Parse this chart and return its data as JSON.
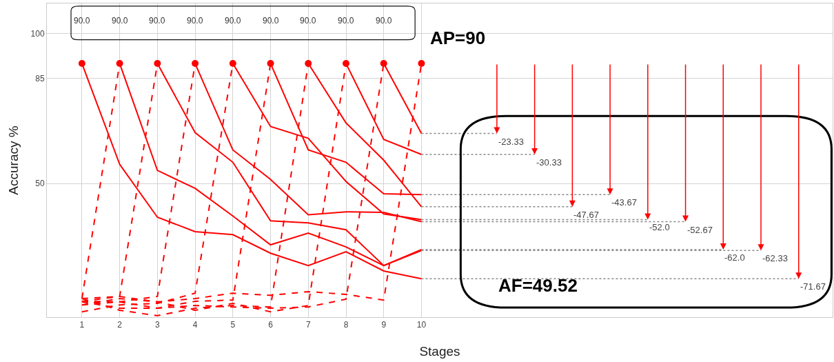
{
  "chart_data": {
    "type": "line",
    "xlabel": "Stages",
    "ylabel": "Accuracy %",
    "xlim": [
      0.07,
      20.9
    ],
    "ylim": [
      5.5,
      110
    ],
    "xticks": [
      1,
      2,
      3,
      4,
      5,
      6,
      7,
      8,
      9,
      10
    ],
    "yticks": [
      50,
      85,
      100
    ],
    "grid": true,
    "series": [
      {
        "type": "line",
        "line_style": "solid",
        "color": "#ff0000",
        "x": [
          1,
          2,
          3,
          4,
          5,
          6,
          7,
          8,
          9,
          10
        ],
        "values": [
          90,
          56.4,
          38.8,
          34.0,
          33.0,
          26.8,
          22.7,
          27.3,
          20.9,
          18.3
        ]
      },
      {
        "type": "line",
        "line_style": "dashed",
        "color": "#ff0000",
        "x": [
          1,
          2
        ],
        "values": [
          11.7,
          90
        ]
      },
      {
        "type": "line",
        "line_style": "solid",
        "color": "#ff0000",
        "x": [
          2,
          3,
          4,
          5,
          6,
          7,
          8,
          9,
          10
        ],
        "values": [
          90,
          54.4,
          48.4,
          39.2,
          29.6,
          33.5,
          28.9,
          22.7,
          27.7
        ]
      },
      {
        "type": "line",
        "line_style": "dashed",
        "color": "#ff0000",
        "x": [
          1,
          2,
          3
        ],
        "values": [
          10.8,
          12.4,
          90
        ]
      },
      {
        "type": "line",
        "line_style": "solid",
        "color": "#ff0000",
        "x": [
          3,
          4,
          5,
          6,
          7,
          8,
          9,
          10
        ],
        "values": [
          90,
          67.0,
          57.1,
          37.6,
          36.9,
          34.6,
          22.7,
          28.0
        ]
      },
      {
        "type": "line",
        "line_style": "dashed",
        "color": "#ff0000",
        "x": [
          1,
          2,
          3,
          4
        ],
        "values": [
          9.6,
          10.6,
          12.4,
          90
        ]
      },
      {
        "type": "line",
        "line_style": "solid",
        "color": "#ff0000",
        "x": [
          4,
          5,
          6,
          7,
          8,
          9,
          10
        ],
        "values": [
          90,
          61.2,
          51.4,
          39.6,
          40.6,
          40.4,
          37.3
        ]
      },
      {
        "type": "line",
        "line_style": "dashed",
        "color": "#ff0000",
        "x": [
          1,
          2,
          3,
          4,
          5
        ],
        "values": [
          7.3,
          9.6,
          10.1,
          13.5,
          90
        ]
      },
      {
        "type": "line",
        "line_style": "solid",
        "color": "#ff0000",
        "x": [
          5,
          6,
          7,
          8,
          9,
          10
        ],
        "values": [
          90,
          69.0,
          65.1,
          50.7,
          39.9,
          38.0
        ]
      },
      {
        "type": "line",
        "line_style": "dashed",
        "color": "#ff0000",
        "x": [
          1,
          2,
          3,
          4,
          5,
          6
        ],
        "values": [
          10.6,
          8.5,
          8.5,
          10.8,
          11.2,
          90
        ]
      },
      {
        "type": "line",
        "line_style": "solid",
        "color": "#ff0000",
        "x": [
          6,
          7,
          8,
          9,
          10
        ],
        "values": [
          90,
          61.2,
          57.1,
          46.6,
          46.3
        ]
      },
      {
        "type": "line",
        "line_style": "dashed",
        "color": "#ff0000",
        "x": [
          1,
          2,
          3,
          4,
          5,
          6,
          7
        ],
        "values": [
          11.7,
          7.8,
          6.0,
          8.5,
          9.4,
          8.9,
          90
        ]
      },
      {
        "type": "line",
        "line_style": "solid",
        "color": "#ff0000",
        "x": [
          7,
          8,
          9,
          10
        ],
        "values": [
          90,
          70.2,
          57.8,
          42.3
        ]
      },
      {
        "type": "line",
        "line_style": "dashed",
        "color": "#ff0000",
        "x": [
          1,
          2,
          3,
          4,
          5,
          6,
          7,
          8
        ],
        "values": [
          9.6,
          11.7,
          10.6,
          7.8,
          10.1,
          7.3,
          9.4,
          90
        ]
      },
      {
        "type": "line",
        "line_style": "solid",
        "color": "#ff0000",
        "x": [
          8,
          9,
          10
        ],
        "values": [
          90,
          64.7,
          59.7
        ]
      },
      {
        "type": "line",
        "line_style": "dashed",
        "color": "#ff0000",
        "x": [
          1,
          2,
          3,
          4,
          5,
          6,
          7,
          8,
          9
        ],
        "values": [
          10.8,
          10.6,
          8.5,
          9.4,
          8.9,
          8.5,
          8.9,
          11.5,
          90
        ]
      },
      {
        "type": "line",
        "line_style": "solid",
        "color": "#ff0000",
        "x": [
          9,
          10
        ],
        "values": [
          90,
          66.7
        ]
      },
      {
        "type": "line",
        "line_style": "dashed",
        "color": "#ff0000",
        "x": [
          1,
          2,
          3,
          4,
          5,
          6,
          7,
          8,
          9,
          10
        ],
        "values": [
          11.7,
          12.4,
          10.6,
          11.7,
          13.5,
          12.8,
          14.0,
          13.1,
          11.2,
          90
        ]
      },
      {
        "type": "scatter",
        "marker": "circle",
        "color": "#ff0000",
        "x": [
          1,
          2,
          3,
          4,
          5,
          6,
          7,
          8,
          9,
          10
        ],
        "values": [
          90,
          90,
          90,
          90,
          90,
          90,
          90,
          90,
          90,
          90
        ]
      }
    ],
    "annotations": [
      "90.0",
      "90.0",
      "90.0",
      "90.0",
      "90.0",
      "90.0",
      "90.0",
      "90.0",
      "90.0",
      "AP=90",
      "-23.33",
      "-30.33",
      "-47.67",
      "-43.67",
      "-52.0",
      "-52.67",
      "-62.0",
      "-62.33",
      "-71.67",
      "AF=49.52"
    ]
  }
}
